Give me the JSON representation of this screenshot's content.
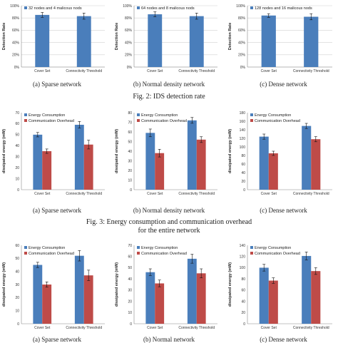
{
  "colors": {
    "blue": "#4a7ebb",
    "red": "#be4b48",
    "grid": "#d0d0d0",
    "axis": "#888888",
    "err": "#111111"
  },
  "charts": [
    {
      "type": "bar",
      "ylabel": "Detection Rate",
      "categories": [
        "Cover Set",
        "Connectivity Threshold"
      ],
      "ylim": [
        0,
        100
      ],
      "yticks": [
        0,
        20,
        40,
        60,
        80,
        100
      ],
      "tick_suffix": "%",
      "grid": true,
      "legend": [
        "32 nodes and 4 malicous nods"
      ],
      "series": [
        {
          "name": "32 nodes and 4 malicous nods",
          "color": "blue",
          "values": [
            85,
            83
          ],
          "errors": [
            4,
            5
          ]
        }
      ]
    },
    {
      "type": "bar",
      "ylabel": "Detection Rate",
      "categories": [
        "Cover Set",
        "Connectivity Threshold"
      ],
      "ylim": [
        0,
        100
      ],
      "yticks": [
        0,
        20,
        40,
        60,
        80,
        100
      ],
      "tick_suffix": "%",
      "grid": true,
      "legend": [
        "64 nodes and 8 malicous nods"
      ],
      "series": [
        {
          "name": "64 nodes and 8 malicous nods",
          "color": "blue",
          "values": [
            86,
            83
          ],
          "errors": [
            4,
            5
          ]
        }
      ]
    },
    {
      "type": "bar",
      "ylabel": "Detection Rate",
      "categories": [
        "Cover Set",
        "Connectivity Threshold"
      ],
      "ylim": [
        0,
        100
      ],
      "yticks": [
        0,
        20,
        40,
        60,
        80,
        100
      ],
      "tick_suffix": "%",
      "grid": true,
      "legend": [
        "128 nodes and 16 malicous nods"
      ],
      "series": [
        {
          "name": "128 nodes and 16 malicous nods",
          "color": "blue",
          "values": [
            84,
            82
          ],
          "errors": [
            3,
            5
          ]
        }
      ]
    },
    {
      "type": "bar",
      "ylabel": "dissipated energy (mW)",
      "categories": [
        "Cover Set",
        "Connectivity Threshold"
      ],
      "ylim": [
        0,
        70
      ],
      "yticks": [
        0,
        10,
        20,
        30,
        40,
        50,
        60,
        70
      ],
      "tick_suffix": "",
      "grid": false,
      "legend": [
        "Energy Consumption",
        "Communication Overhead"
      ],
      "series": [
        {
          "name": "Energy Consumption",
          "color": "blue",
          "values": [
            50,
            59
          ],
          "errors": [
            2,
            3
          ]
        },
        {
          "name": "Communication Overhead",
          "color": "red",
          "values": [
            35,
            41
          ],
          "errors": [
            2,
            4
          ]
        }
      ]
    },
    {
      "type": "bar",
      "ylabel": "dissipated energy (mW)",
      "categories": [
        "Cover Set",
        "Connectivity Threshold"
      ],
      "ylim": [
        0,
        80
      ],
      "yticks": [
        0,
        10,
        20,
        30,
        40,
        50,
        60,
        70,
        80
      ],
      "tick_suffix": "",
      "grid": false,
      "legend": [
        "Energy Consumption",
        "Communication Overhead"
      ],
      "series": [
        {
          "name": "Energy Consumption",
          "color": "blue",
          "values": [
            59,
            72
          ],
          "errors": [
            4,
            3
          ]
        },
        {
          "name": "Communication Overhead",
          "color": "red",
          "values": [
            38,
            52
          ],
          "errors": [
            4,
            3
          ]
        }
      ]
    },
    {
      "type": "bar",
      "ylabel": "dissipated energy (mW)",
      "categories": [
        "Cover Set",
        "Connectivity Threshold"
      ],
      "ylim": [
        0,
        180
      ],
      "yticks": [
        0,
        20,
        40,
        60,
        80,
        100,
        120,
        140,
        160,
        180
      ],
      "tick_suffix": "",
      "grid": false,
      "legend": [
        "Energy Consumption",
        "Communication Overhead"
      ],
      "series": [
        {
          "name": "Energy Consumption",
          "color": "blue",
          "values": [
            124,
            149
          ],
          "errors": [
            6,
            6
          ]
        },
        {
          "name": "Communication Overhead",
          "color": "red",
          "values": [
            85,
            118
          ],
          "errors": [
            5,
            6
          ]
        }
      ]
    },
    {
      "type": "bar",
      "ylabel": "dissipated energy (mW)",
      "categories": [
        "Cover Set",
        "Connectivity Threshold"
      ],
      "ylim": [
        0,
        60
      ],
      "yticks": [
        0,
        10,
        20,
        30,
        40,
        50,
        60
      ],
      "tick_suffix": "",
      "grid": false,
      "legend": [
        "Energy Consumption",
        "Communication Overhead"
      ],
      "series": [
        {
          "name": "Energy Consumption",
          "color": "blue",
          "values": [
            45,
            52
          ],
          "errors": [
            2,
            4
          ]
        },
        {
          "name": "Communication Overhead",
          "color": "red",
          "values": [
            30,
            37
          ],
          "errors": [
            2,
            4
          ]
        }
      ]
    },
    {
      "type": "bar",
      "ylabel": "dissipated energy (mW)",
      "categories": [
        "Cover Set",
        "Connectivity Threshold"
      ],
      "ylim": [
        0,
        70
      ],
      "yticks": [
        0,
        10,
        20,
        30,
        40,
        50,
        60,
        70
      ],
      "tick_suffix": "",
      "grid": false,
      "legend": [
        "Energy Consumption",
        "Communication Overhead"
      ],
      "series": [
        {
          "name": "Energy Consumption",
          "color": "blue",
          "values": [
            46,
            58
          ],
          "errors": [
            3,
            4
          ]
        },
        {
          "name": "Communication Overhead",
          "color": "red",
          "values": [
            36,
            45
          ],
          "errors": [
            3,
            4
          ]
        }
      ]
    },
    {
      "type": "bar",
      "ylabel": "dissipated energy (mW)",
      "categories": [
        "Cover Set",
        "Connectivity Threshold"
      ],
      "ylim": [
        0,
        140
      ],
      "yticks": [
        0,
        20,
        40,
        60,
        80,
        100,
        120,
        140
      ],
      "tick_suffix": "",
      "grid": false,
      "legend": [
        "Energy Consumption",
        "Communication Overhead"
      ],
      "series": [
        {
          "name": "Energy Consumption",
          "color": "blue",
          "values": [
            100,
            121
          ],
          "errors": [
            6,
            7
          ]
        },
        {
          "name": "Communication Overhead",
          "color": "red",
          "values": [
            77,
            94
          ],
          "errors": [
            5,
            6
          ]
        }
      ]
    }
  ],
  "captions": {
    "row1": [
      "(a)  Sparse network",
      "(b)  Normal density network",
      "(c)  Dense network"
    ],
    "fig2": "Fig. 2:  IDS detection rate",
    "row2": [
      "(a)  Sparse network",
      "(b)  Normal density network",
      "(c)  Dense network"
    ],
    "fig3_line1": "Fig. 3:  Energy consumption and communication overhead",
    "fig3_line2": "for the entire network",
    "row3": [
      "(a)  Sparse network",
      "(b)  Normal network",
      "(c)  Dense network"
    ]
  }
}
